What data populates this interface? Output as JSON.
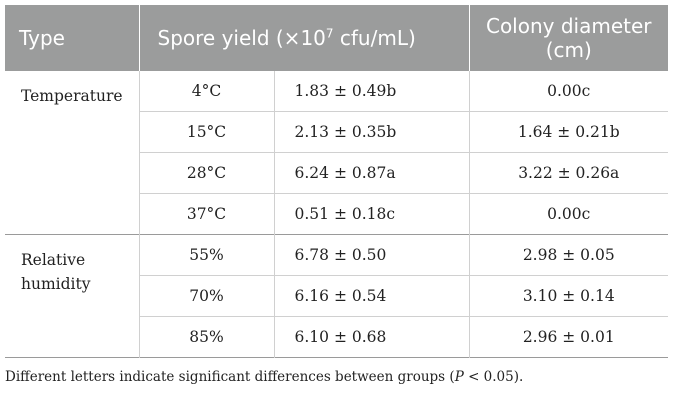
{
  "header": {
    "type": "Type",
    "spore_prefix": "Spore yield (×10",
    "spore_exp": "7",
    "spore_suffix": " cfu/mL)",
    "colony": "Colony diameter (cm)"
  },
  "groups": [
    {
      "label": "Temperature",
      "rows": [
        {
          "condition": "4°C",
          "spore": "1.83 ± 0.49b",
          "colony": "0.00c"
        },
        {
          "condition": "15°C",
          "spore": "2.13 ± 0.35b",
          "colony": "1.64 ± 0.21b"
        },
        {
          "condition": "28°C",
          "spore": "6.24 ± 0.87a",
          "colony": "3.22 ± 0.26a"
        },
        {
          "condition": "37°C",
          "spore": "0.51 ± 0.18c",
          "colony": "0.00c"
        }
      ]
    },
    {
      "label": "Relative humidity",
      "rows": [
        {
          "condition": "55%",
          "spore": "6.78 ± 0.50",
          "colony": "2.98 ± 0.05"
        },
        {
          "condition": "70%",
          "spore": "6.16 ± 0.54",
          "colony": "3.10 ± 0.14"
        },
        {
          "condition": "85%",
          "spore": "6.10 ± 0.68",
          "colony": "2.96 ± 0.01"
        }
      ]
    }
  ],
  "footnote": {
    "text": "Different letters indicate significant differences between groups (",
    "p": "P",
    "after": " < 0.05)."
  }
}
